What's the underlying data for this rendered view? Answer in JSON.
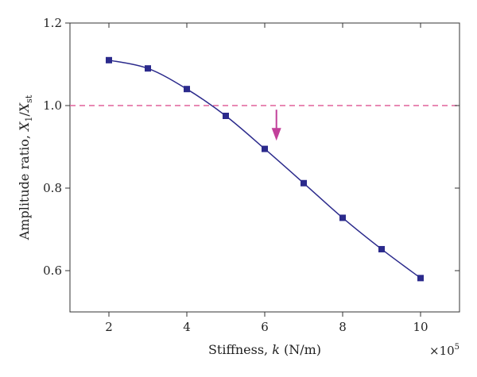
{
  "chart_data": {
    "type": "line",
    "xlabel": {
      "prefix": "Stiffness, ",
      "var": "k",
      "suffix": " (N/m)"
    },
    "ylabel": {
      "prefix": "Amplitude ratio, ",
      "num": "X",
      "num_sub": "1",
      "slash": "/",
      "den": "X",
      "den_sub": "st"
    },
    "x_multiplier": {
      "base": "×10",
      "exp": "5"
    },
    "xlim": [
      1,
      11
    ],
    "ylim": [
      0.5,
      1.2
    ],
    "xticks": [
      2,
      4,
      6,
      8,
      10
    ],
    "xtick_labels": [
      "2",
      "4",
      "6",
      "8",
      "10"
    ],
    "yticks": [
      0.6,
      0.8,
      1.0,
      1.2
    ],
    "ytick_labels": [
      "0.6",
      "0.8",
      "1.0",
      "1.2"
    ],
    "grid": false,
    "series": [
      {
        "x": [
          2,
          3,
          4,
          5,
          6,
          7,
          8,
          9,
          10
        ],
        "y": [
          1.11,
          1.09,
          1.04,
          0.975,
          0.895,
          0.812,
          0.728,
          0.652,
          0.582
        ],
        "color": "#2b2a8c",
        "marker": "square"
      }
    ],
    "reference_line": {
      "y": 1.0,
      "color": "#e0609a",
      "style": "dashed"
    },
    "annotation_arrow": {
      "x": 6.3,
      "y_from": 0.99,
      "y_to": 0.915,
      "color": "#c2409a"
    }
  }
}
